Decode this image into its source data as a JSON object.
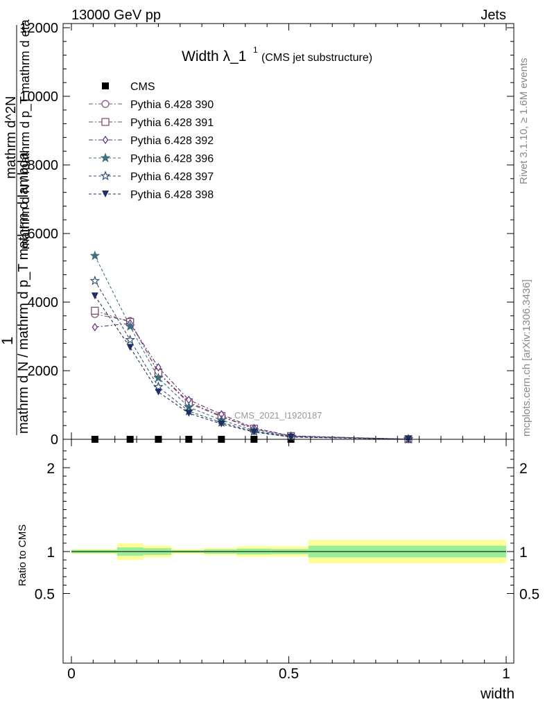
{
  "header": {
    "left": "13000 GeV pp",
    "right": "Jets"
  },
  "side_labels": {
    "rivet": "Rivet 3.1.10, ≥ 1.6M events",
    "mcplots": "mcplots.cern.ch [arXiv:1306.3436]"
  },
  "chart_data": [
    {
      "type": "line",
      "title": "Width λ_1",
      "title_sup": "1",
      "subtitle": "(CMS jet substructure)",
      "watermark": "CMS_2021_I1920187",
      "ylabel_top": "1",
      "ylabel_numerator": "mathrm d N / mathrm d p_T mathrm d lambda",
      "ylabel_denominator": "mathrm d N / mathrm d p_T mathrm d eta",
      "ylabel_fraction_top": "mathrm d^2N",
      "ylim": [
        0,
        12000
      ],
      "xlim": [
        0,
        1
      ],
      "y_ticks": [
        0,
        2000,
        4000,
        6000,
        8000,
        10000,
        12000
      ],
      "y_tick_labels": [
        "0",
        "2000",
        "4000",
        "6000",
        "8000",
        "10000",
        "12000"
      ],
      "legend_position": "top-left",
      "x": [
        0.054,
        0.135,
        0.2,
        0.27,
        0.345,
        0.42,
        0.505,
        0.775
      ],
      "series": [
        {
          "name": "CMS",
          "color": "#000000",
          "marker": "square",
          "dash": "none",
          "values": [
            0,
            0,
            0,
            0,
            0,
            0,
            0,
            0
          ]
        },
        {
          "name": "Pythia 6.428 390",
          "color": "#7a4f7a",
          "marker": "circle-open",
          "dash": "6,3,2,3",
          "values": [
            3650,
            3450,
            1930,
            1050,
            660,
            300,
            90,
            5
          ]
        },
        {
          "name": "Pythia 6.428 391",
          "color": "#7f3f5f",
          "marker": "square-open",
          "dash": "6,3,2,3",
          "values": [
            3750,
            3420,
            1950,
            1080,
            680,
            310,
            95,
            5
          ]
        },
        {
          "name": "Pythia 6.428 392",
          "color": "#5a2d82",
          "marker": "diamond-open",
          "dash": "6,3,2,3",
          "values": [
            3270,
            3380,
            2100,
            1150,
            730,
            330,
            100,
            5
          ]
        },
        {
          "name": "Pythia 6.428 396",
          "color": "#3f6f7f",
          "marker": "star-filled",
          "dash": "4,3",
          "values": [
            5350,
            3290,
            1790,
            940,
            560,
            260,
            80,
            5
          ]
        },
        {
          "name": "Pythia 6.428 397",
          "color": "#2f4f6f",
          "marker": "star-open",
          "dash": "4,3",
          "values": [
            4620,
            2900,
            1530,
            820,
            490,
            230,
            70,
            5
          ]
        },
        {
          "name": "Pythia 6.428 398",
          "color": "#1f2f5f",
          "marker": "triangle-down-filled",
          "dash": "4,3",
          "values": [
            4180,
            2680,
            1380,
            760,
            450,
            210,
            65,
            5
          ]
        }
      ]
    },
    {
      "type": "area",
      "ylabel": "Ratio to CMS",
      "xlabel": "width",
      "ylim": [
        0.3,
        2.3
      ],
      "xlim": [
        0,
        1
      ],
      "y_tick_labels": [
        "0.5",
        "1",
        "2"
      ],
      "y_tick_values": [
        0.5,
        1,
        2
      ],
      "x_tick_labels": [
        "0",
        "0.5",
        "1"
      ],
      "x_tick_values": [
        0,
        0.5,
        1
      ],
      "reference": 1,
      "bins": [
        {
          "x_lo": 0.0,
          "x_hi": 0.105,
          "green": [
            0.98,
            1.02
          ],
          "yellow": [
            0.97,
            1.03
          ]
        },
        {
          "x_lo": 0.105,
          "x_hi": 0.165,
          "green": [
            0.95,
            1.05
          ],
          "yellow": [
            0.9,
            1.1
          ]
        },
        {
          "x_lo": 0.165,
          "x_hi": 0.23,
          "green": [
            0.96,
            1.04
          ],
          "yellow": [
            0.93,
            1.07
          ]
        },
        {
          "x_lo": 0.23,
          "x_hi": 0.305,
          "green": [
            0.985,
            1.015
          ],
          "yellow": [
            0.97,
            1.03
          ]
        },
        {
          "x_lo": 0.305,
          "x_hi": 0.38,
          "green": [
            0.975,
            1.025
          ],
          "yellow": [
            0.955,
            1.045
          ]
        },
        {
          "x_lo": 0.38,
          "x_hi": 0.46,
          "green": [
            0.965,
            1.035
          ],
          "yellow": [
            0.935,
            1.065
          ]
        },
        {
          "x_lo": 0.46,
          "x_hi": 0.545,
          "green": [
            0.97,
            1.03
          ],
          "yellow": [
            0.94,
            1.06
          ]
        },
        {
          "x_lo": 0.545,
          "x_hi": 1.0,
          "green": [
            0.93,
            1.07
          ],
          "yellow": [
            0.86,
            1.14
          ]
        }
      ]
    }
  ]
}
